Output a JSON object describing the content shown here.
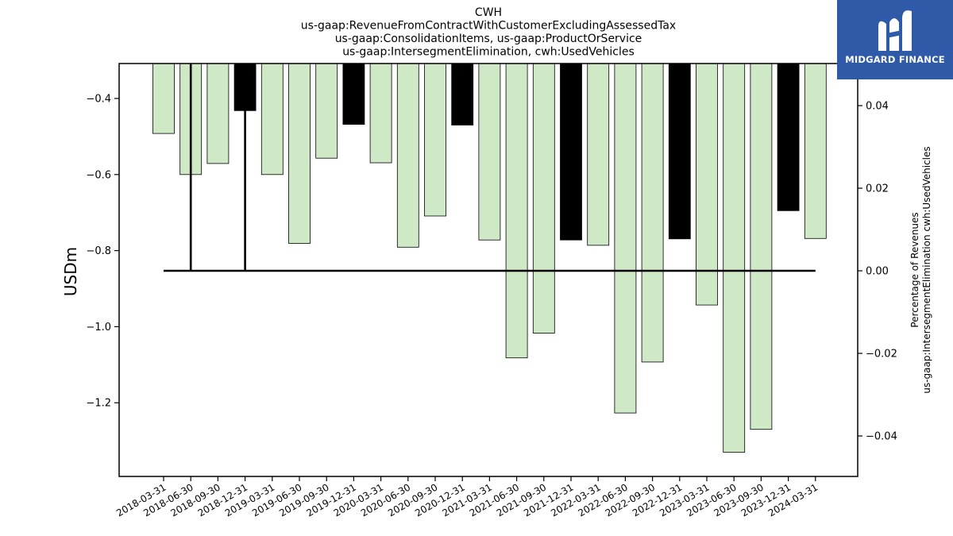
{
  "chart_data": {
    "type": "bar",
    "title_lines": [
      "CWH",
      "us-gaap:RevenueFromContractWithCustomerExcludingAssessedTax",
      "us-gaap:ConsolidationItems, us-gaap:ProductOrService",
      "us-gaap:IntersegmentElimination, cwh:UsedVehicles"
    ],
    "ylabel": "USDm",
    "y2label_lines": [
      "Percentage of Revenues",
      "us-gaap:IntersegmentElimination cwh:UsedVehicles"
    ],
    "categories": [
      "2018-03-31",
      "2018-06-30",
      "2018-09-30",
      "2018-12-31",
      "2019-03-31",
      "2019-06-30",
      "2019-09-30",
      "2019-12-31",
      "2020-03-31",
      "2020-06-30",
      "2020-09-30",
      "2020-12-31",
      "2021-03-31",
      "2021-06-30",
      "2021-09-30",
      "2021-12-31",
      "2022-03-31",
      "2022-06-30",
      "2022-09-30",
      "2022-12-31",
      "2023-03-31",
      "2023-06-30",
      "2023-09-30",
      "2023-12-31",
      "2024-03-31"
    ],
    "values": [
      -0.492,
      -0.6,
      -0.571,
      -0.432,
      -0.6,
      -0.781,
      -0.557,
      -0.468,
      -0.569,
      -0.791,
      -0.709,
      -0.47,
      -0.772,
      -1.082,
      -1.017,
      -0.772,
      -0.786,
      -1.227,
      -1.093,
      -0.769,
      -0.943,
      -1.33,
      -1.27,
      -0.695,
      -0.768
    ],
    "bar_kinds": [
      "light",
      "light",
      "light",
      "dark",
      "light",
      "light",
      "light",
      "dark",
      "light",
      "light",
      "light",
      "dark",
      "light",
      "light",
      "light",
      "dark",
      "light",
      "light",
      "light",
      "dark",
      "light",
      "light",
      "light",
      "dark",
      "light"
    ],
    "colors": {
      "light": "#cfe9c7",
      "dark": "#000000",
      "edge": "#000000",
      "line": "#000000"
    },
    "ylim": [
      -1.4,
      -0.3
    ],
    "yticks": [
      -1.2,
      -1.0,
      -0.8,
      -0.6,
      -0.4
    ],
    "ytick_labels": [
      "−1.2",
      "−1.0",
      "−0.8",
      "−0.6",
      "−0.4"
    ],
    "y2lim": [
      -0.05,
      0.0525
    ],
    "y2ticks": [
      -0.04,
      -0.02,
      0.0,
      0.02,
      0.04
    ],
    "y2tick_labels": [
      "−0.04",
      "−0.02",
      "0.00",
      "0.02",
      "0.04"
    ],
    "line_values": [
      0.0,
      0.0,
      0.0,
      0.0,
      0.0,
      0.0,
      0.0,
      0.0,
      0.0,
      0.0,
      0.0,
      0.0,
      0.0,
      0.0,
      0.0,
      0.0,
      0.0,
      0.0,
      0.0,
      0.0,
      0.0,
      0.0,
      0.0,
      0.0,
      0.0
    ],
    "line_spikes_to_top": [
      "2018-06-30",
      "2018-12-31"
    ],
    "grid": false,
    "legend": "none"
  },
  "logo": {
    "text": "MIDGARD FINANCE",
    "icon": "midgard-logo-icon"
  }
}
